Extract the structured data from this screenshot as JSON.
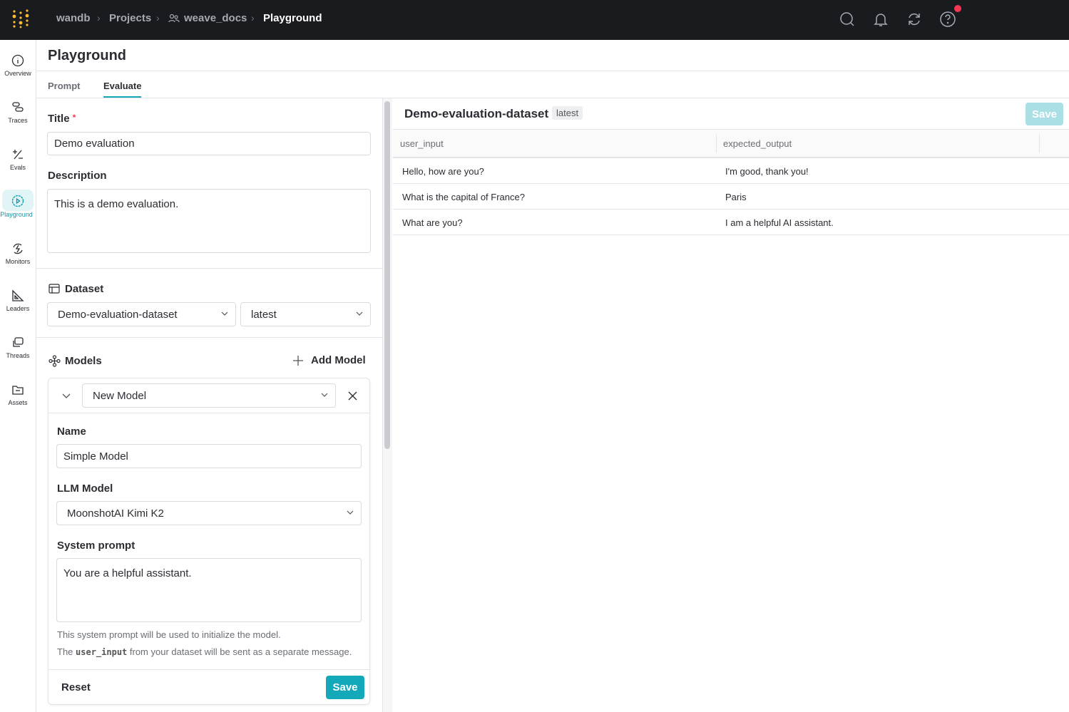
{
  "topbar": {
    "breadcrumbs": [
      "wandb",
      "Projects",
      "weave_docs",
      "Playground"
    ],
    "icons": [
      "search-icon",
      "bell-icon",
      "refresh-icon",
      "help-icon"
    ],
    "notification_color": "#f5374f"
  },
  "sidebar": {
    "items": [
      {
        "label": "Overview",
        "icon": "info-icon"
      },
      {
        "label": "Traces",
        "icon": "traces-icon"
      },
      {
        "label": "Evals",
        "icon": "plus-minus-icon"
      },
      {
        "label": "Playground",
        "icon": "play-icon",
        "active": true
      },
      {
        "label": "Monitors",
        "icon": "monitor-icon"
      },
      {
        "label": "Leaders",
        "icon": "triangle-ruler-icon"
      },
      {
        "label": "Threads",
        "icon": "chat-icon"
      },
      {
        "label": "Assets",
        "icon": "folder-icon"
      }
    ]
  },
  "page": {
    "title": "Playground",
    "tabs": [
      {
        "label": "Prompt"
      },
      {
        "label": "Evaluate",
        "active": true
      }
    ]
  },
  "form": {
    "title_label": "Title",
    "required_mark": "*",
    "title_value": "Demo evaluation",
    "description_label": "Description",
    "description_value": "This is a demo evaluation.",
    "dataset_label": "Dataset",
    "dataset_value": "Demo-evaluation-dataset",
    "version_value": "latest",
    "models_label": "Models",
    "add_model_label": "Add Model",
    "model": {
      "selector_value": "New Model",
      "name_label": "Name",
      "name_value": "Simple Model",
      "llm_label": "LLM Model",
      "llm_value": "MoonshotAI Kimi K2",
      "system_prompt_label": "System prompt",
      "system_prompt_value": "You are a helpful assistant.",
      "help_line1": "This system prompt will be used to initialize the model.",
      "help_line2_pre": "The ",
      "help_line2_code": "user_input",
      "help_line2_post": " from your dataset will be sent as a separate message.",
      "reset_label": "Reset",
      "save_label": "Save"
    }
  },
  "dataset_view": {
    "title": "Demo-evaluation-dataset",
    "badge": "latest",
    "save_label": "Save",
    "columns": [
      "user_input",
      "expected_output"
    ],
    "rows": [
      [
        "Hello, how are you?",
        "I'm good, thank you!"
      ],
      [
        "What is the capital of France?",
        "Paris"
      ],
      [
        "What are you?",
        "I am a helpful AI assistant."
      ]
    ]
  },
  "colors": {
    "accent": "#13a9ba",
    "accent_disabled": "#a9dfe5",
    "topbar": "#1a1b1e"
  }
}
